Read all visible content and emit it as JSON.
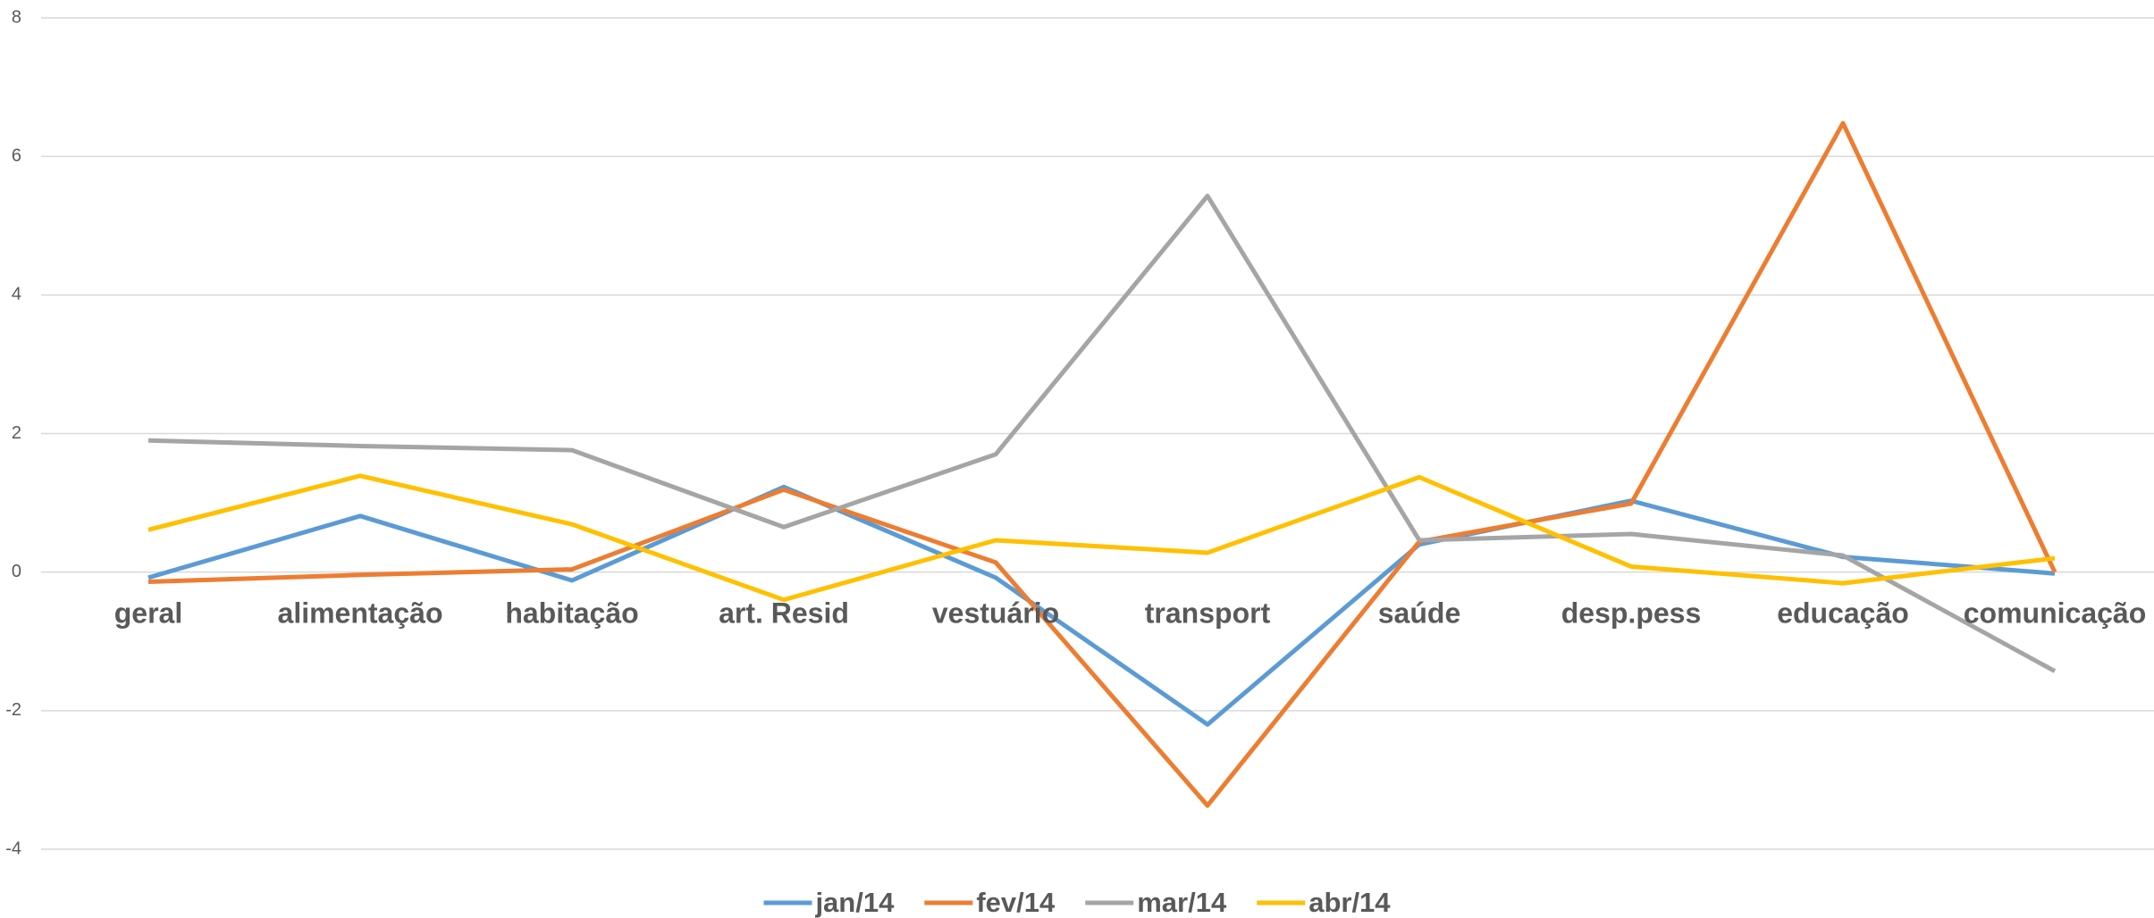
{
  "chart_data": {
    "type": "line",
    "categories": [
      "geral",
      "alimentação",
      "habitação",
      "art. Resid",
      "vestuário",
      "transport",
      "saúde",
      "desp.pess",
      "educação",
      "comunicação"
    ],
    "series": [
      {
        "name": "jan/14",
        "color": "#5b9bd5",
        "values": [
          -0.08,
          0.81,
          -0.12,
          1.23,
          -0.08,
          -2.2,
          0.4,
          1.03,
          0.22,
          -0.02
        ]
      },
      {
        "name": "fev/14",
        "color": "#ed7d31",
        "values": [
          -0.14,
          -0.04,
          0.04,
          1.19,
          0.14,
          -3.37,
          0.44,
          0.99,
          6.48,
          0.0
        ]
      },
      {
        "name": "mar/14",
        "color": "#a5a5a5",
        "values": [
          1.9,
          1.82,
          1.76,
          0.65,
          1.7,
          5.43,
          0.46,
          0.55,
          0.24,
          -1.43
        ]
      },
      {
        "name": "abr/14",
        "color": "#ffc000",
        "values": [
          0.61,
          1.39,
          0.69,
          -0.4,
          0.46,
          0.28,
          1.37,
          0.08,
          -0.16,
          0.2
        ]
      }
    ],
    "ylim": [
      -4,
      8
    ],
    "yticks": [
      -4,
      -2,
      0,
      2,
      4,
      6,
      8
    ],
    "grid": true,
    "legend": "bottom"
  }
}
